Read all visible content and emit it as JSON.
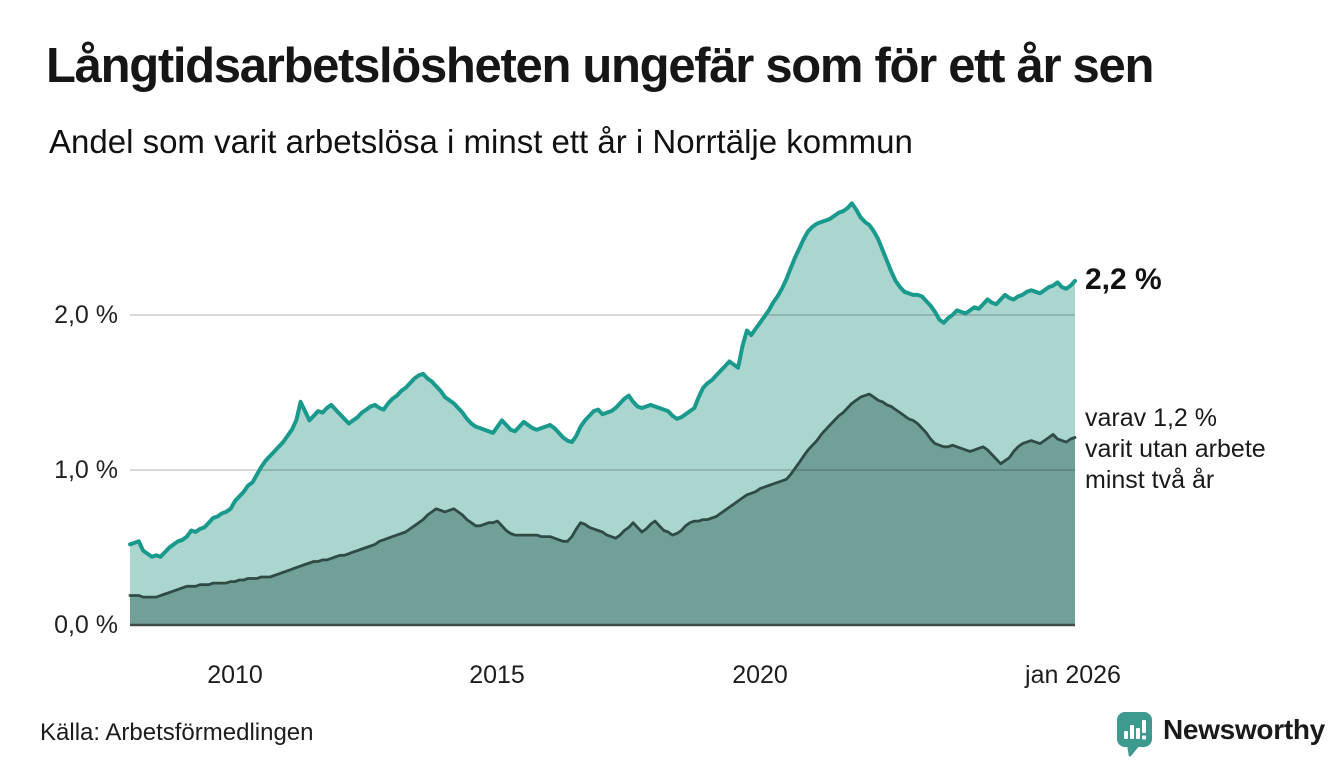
{
  "header": {
    "title": "Långtidsarbetslösheten ungefär som för ett år sen",
    "subtitle": "Andel som varit arbetslösa i minst ett år i Norrtälje kommun"
  },
  "chart_data": {
    "type": "area",
    "title": "Långtidsarbetslösheten ungefär som för ett år sen",
    "subtitle": "Andel som varit arbetslösa i minst ett år i Norrtälje kommun",
    "unit": "%",
    "x_start_year": 2008,
    "x_end_year": 2026,
    "points_per_year": 12,
    "ylim": [
      0,
      2.9
    ],
    "grid": "horizontal",
    "y_ticks": [
      {
        "label": "0,0 %",
        "value": 0
      },
      {
        "label": "1,0 %",
        "value": 1
      },
      {
        "label": "2,0 %",
        "value": 2
      }
    ],
    "x_ticks": [
      {
        "label": "2010",
        "year": 2010
      },
      {
        "label": "2015",
        "year": 2015
      },
      {
        "label": "2020",
        "year": 2020
      },
      {
        "label": "jan 2026",
        "year": 2026
      }
    ],
    "series": [
      {
        "name": "arbetslösa minst ett år",
        "line_color": "#1a9a8c",
        "fill_color": "#abd6cf",
        "end_label": "2,2 %",
        "values": [
          0.52,
          0.53,
          0.54,
          0.48,
          0.46,
          0.44,
          0.45,
          0.44,
          0.47,
          0.5,
          0.52,
          0.54,
          0.55,
          0.57,
          0.61,
          0.6,
          0.62,
          0.63,
          0.66,
          0.69,
          0.7,
          0.72,
          0.73,
          0.75,
          0.8,
          0.83,
          0.86,
          0.9,
          0.92,
          0.97,
          1.02,
          1.06,
          1.09,
          1.12,
          1.15,
          1.18,
          1.22,
          1.26,
          1.32,
          1.44,
          1.38,
          1.32,
          1.35,
          1.38,
          1.37,
          1.4,
          1.42,
          1.39,
          1.36,
          1.33,
          1.3,
          1.32,
          1.34,
          1.37,
          1.39,
          1.41,
          1.42,
          1.4,
          1.39,
          1.43,
          1.46,
          1.48,
          1.51,
          1.53,
          1.56,
          1.59,
          1.61,
          1.62,
          1.59,
          1.57,
          1.54,
          1.51,
          1.47,
          1.45,
          1.43,
          1.4,
          1.37,
          1.33,
          1.3,
          1.28,
          1.27,
          1.26,
          1.25,
          1.24,
          1.28,
          1.32,
          1.29,
          1.26,
          1.25,
          1.28,
          1.31,
          1.29,
          1.27,
          1.26,
          1.27,
          1.28,
          1.29,
          1.27,
          1.24,
          1.21,
          1.19,
          1.18,
          1.22,
          1.28,
          1.32,
          1.35,
          1.38,
          1.39,
          1.36,
          1.37,
          1.38,
          1.4,
          1.43,
          1.46,
          1.48,
          1.44,
          1.41,
          1.4,
          1.41,
          1.42,
          1.41,
          1.4,
          1.39,
          1.38,
          1.35,
          1.33,
          1.34,
          1.36,
          1.38,
          1.4,
          1.47,
          1.53,
          1.56,
          1.58,
          1.61,
          1.64,
          1.67,
          1.7,
          1.68,
          1.66,
          1.8,
          1.9,
          1.87,
          1.91,
          1.95,
          1.99,
          2.03,
          2.08,
          2.12,
          2.17,
          2.23,
          2.3,
          2.37,
          2.43,
          2.49,
          2.54,
          2.57,
          2.59,
          2.6,
          2.61,
          2.62,
          2.64,
          2.66,
          2.67,
          2.69,
          2.72,
          2.68,
          2.63,
          2.6,
          2.58,
          2.54,
          2.49,
          2.42,
          2.35,
          2.28,
          2.22,
          2.18,
          2.15,
          2.14,
          2.13,
          2.13,
          2.12,
          2.09,
          2.06,
          2.02,
          1.97,
          1.95,
          1.98,
          2.0,
          2.03,
          2.02,
          2.01,
          2.03,
          2.05,
          2.04,
          2.07,
          2.1,
          2.08,
          2.07,
          2.1,
          2.13,
          2.11,
          2.1,
          2.12,
          2.13,
          2.15,
          2.16,
          2.15,
          2.14,
          2.16,
          2.18,
          2.19,
          2.21,
          2.18,
          2.17,
          2.19,
          2.22
        ]
      },
      {
        "name": "varav utan arbete minst två år",
        "line_color": "#2f4b46",
        "fill_color": "#70a098",
        "end_label": "varav 1,2 % varit utan arbete minst två år",
        "values": [
          0.19,
          0.19,
          0.19,
          0.18,
          0.18,
          0.18,
          0.18,
          0.19,
          0.2,
          0.21,
          0.22,
          0.23,
          0.24,
          0.25,
          0.25,
          0.25,
          0.26,
          0.26,
          0.26,
          0.27,
          0.27,
          0.27,
          0.27,
          0.28,
          0.28,
          0.29,
          0.29,
          0.3,
          0.3,
          0.3,
          0.31,
          0.31,
          0.31,
          0.32,
          0.33,
          0.34,
          0.35,
          0.36,
          0.37,
          0.38,
          0.39,
          0.4,
          0.41,
          0.41,
          0.42,
          0.42,
          0.43,
          0.44,
          0.45,
          0.45,
          0.46,
          0.47,
          0.48,
          0.49,
          0.5,
          0.51,
          0.52,
          0.54,
          0.55,
          0.56,
          0.57,
          0.58,
          0.59,
          0.6,
          0.62,
          0.64,
          0.66,
          0.68,
          0.71,
          0.73,
          0.75,
          0.74,
          0.73,
          0.74,
          0.75,
          0.73,
          0.71,
          0.68,
          0.66,
          0.64,
          0.64,
          0.65,
          0.66,
          0.66,
          0.67,
          0.64,
          0.61,
          0.59,
          0.58,
          0.58,
          0.58,
          0.58,
          0.58,
          0.58,
          0.57,
          0.57,
          0.57,
          0.56,
          0.55,
          0.54,
          0.54,
          0.57,
          0.62,
          0.66,
          0.65,
          0.63,
          0.62,
          0.61,
          0.6,
          0.58,
          0.57,
          0.56,
          0.58,
          0.61,
          0.63,
          0.66,
          0.63,
          0.6,
          0.62,
          0.65,
          0.67,
          0.64,
          0.61,
          0.6,
          0.58,
          0.59,
          0.61,
          0.64,
          0.66,
          0.67,
          0.67,
          0.68,
          0.68,
          0.69,
          0.7,
          0.72,
          0.74,
          0.76,
          0.78,
          0.8,
          0.82,
          0.84,
          0.85,
          0.86,
          0.88,
          0.89,
          0.9,
          0.91,
          0.92,
          0.93,
          0.94,
          0.97,
          1.01,
          1.05,
          1.09,
          1.13,
          1.16,
          1.19,
          1.23,
          1.26,
          1.29,
          1.32,
          1.35,
          1.37,
          1.4,
          1.43,
          1.45,
          1.47,
          1.48,
          1.49,
          1.47,
          1.45,
          1.44,
          1.42,
          1.41,
          1.39,
          1.37,
          1.35,
          1.33,
          1.32,
          1.3,
          1.27,
          1.24,
          1.2,
          1.17,
          1.16,
          1.15,
          1.15,
          1.16,
          1.15,
          1.14,
          1.13,
          1.12,
          1.13,
          1.14,
          1.15,
          1.13,
          1.1,
          1.07,
          1.04,
          1.06,
          1.08,
          1.12,
          1.15,
          1.17,
          1.18,
          1.19,
          1.18,
          1.17,
          1.19,
          1.21,
          1.23,
          1.2,
          1.19,
          1.18,
          1.2,
          1.21
        ]
      }
    ],
    "annotations": {
      "latest_total": "2,2 %",
      "secondary_lines": [
        "varav 1,2 %",
        "varit utan arbete",
        "minst två år"
      ]
    },
    "colors": {
      "grid": "#d9d9d9",
      "baseline": "#414b49",
      "text": "#1a1a1a"
    }
  },
  "footer": {
    "source": "Källa: Arbetsförmedlingen",
    "brand": "Newsworthy",
    "brand_color": "#3e998e"
  }
}
